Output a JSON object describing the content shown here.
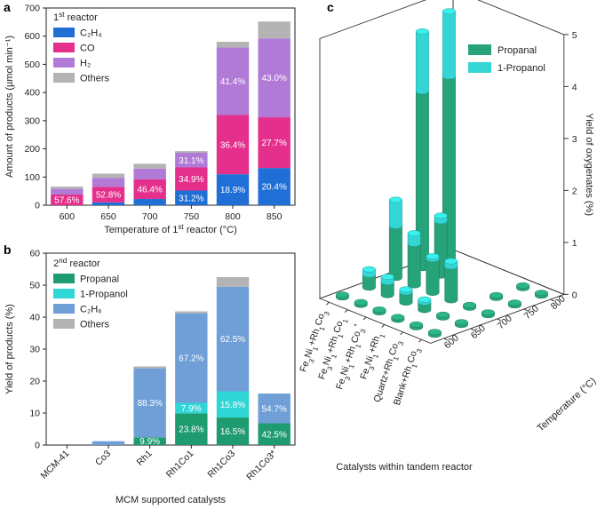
{
  "panel_labels": [
    "a",
    "b",
    "c"
  ],
  "colors": {
    "C2H4": "#1f6fd6",
    "CO": "#e52f8d",
    "H2": "#b07ad6",
    "Others": "#b3b3b3",
    "Propanal": "#1f9b70",
    "1-Propanol": "#2fd6d6",
    "C2H6": "#6f9fd6",
    "c_propanal": "#27a37a",
    "c_propanol": "#33d6d4"
  },
  "chart_data": [
    {
      "id": "a",
      "type": "bar",
      "stacked": true,
      "legend_title": "1st reactor",
      "legend_title_parts": [
        "1",
        "st",
        " reactor"
      ],
      "xlabel_parts": [
        "Temperature of 1",
        "st",
        " reactor (°C)"
      ],
      "xlabel": "Temperature of 1st reactor (°C)",
      "ylabel": "Amount of products (µmol min⁻¹)",
      "ylim": [
        0,
        700
      ],
      "yticks": [
        0,
        100,
        200,
        300,
        400,
        500,
        600,
        700
      ],
      "categories": [
        "600",
        "650",
        "700",
        "750",
        "800",
        "850"
      ],
      "series": [
        {
          "name": "C2H4",
          "label": "C₂H₄",
          "values": [
            0,
            10,
            22,
            52,
            110,
            132
          ]
        },
        {
          "name": "CO",
          "label": "CO",
          "values": [
            38,
            55,
            70,
            82,
            210,
            180
          ]
        },
        {
          "name": "H2",
          "label": "H₂",
          "values": [
            20,
            32,
            38,
            52,
            240,
            280
          ]
        },
        {
          "name": "Others",
          "label": "Others",
          "values": [
            8,
            15,
            17,
            6,
            20,
            60
          ]
        }
      ],
      "annotations": [
        {
          "cat": 0,
          "series": "CO",
          "text": "57.6%"
        },
        {
          "cat": 1,
          "series": "CO",
          "text": "52.8%"
        },
        {
          "cat": 2,
          "series": "CO",
          "text": "46.4%"
        },
        {
          "cat": 3,
          "series": "H2",
          "text": "31.1%"
        },
        {
          "cat": 3,
          "series": "CO",
          "text": "34.9%"
        },
        {
          "cat": 3,
          "series": "C2H4",
          "text": "31.2%"
        },
        {
          "cat": 4,
          "series": "H2",
          "text": "41.4%"
        },
        {
          "cat": 4,
          "series": "CO",
          "text": "36.4%"
        },
        {
          "cat": 4,
          "series": "C2H4",
          "text": "18.9%"
        },
        {
          "cat": 5,
          "series": "H2",
          "text": "43.0%"
        },
        {
          "cat": 5,
          "series": "CO",
          "text": "27.7%"
        },
        {
          "cat": 5,
          "series": "C2H4",
          "text": "20.4%"
        }
      ]
    },
    {
      "id": "b",
      "type": "bar",
      "stacked": true,
      "legend_title": "2nd reactor",
      "legend_title_parts": [
        "2",
        "nd",
        " reactor"
      ],
      "xlabel": "MCM supported catalysts",
      "ylabel": "Yield of products (%)",
      "ylim": [
        0,
        60
      ],
      "yticks": [
        0,
        10,
        20,
        30,
        40,
        50,
        60
      ],
      "categories": [
        "MCM-41",
        "Co3",
        "Rh1",
        "Rh1Co1",
        "Rh1Co3",
        "Rh1Co3*"
      ],
      "series": [
        {
          "name": "Propanal",
          "label": "Propanal",
          "values": [
            0,
            0,
            2.4,
            9.9,
            8.6,
            6.8
          ]
        },
        {
          "name": "1-Propanol",
          "label": "1-Propanol",
          "values": [
            0,
            0,
            0,
            3.3,
            8.2,
            0
          ]
        },
        {
          "name": "C2H6",
          "label": "C₂H₆",
          "values": [
            0,
            1.2,
            21.6,
            28.0,
            32.7,
            9.3
          ]
        },
        {
          "name": "Others",
          "label": "Others",
          "values": [
            0,
            0,
            0.6,
            0.6,
            3.0,
            0
          ]
        }
      ],
      "annotations": [
        {
          "cat": 2,
          "series": "C2H6",
          "text": "88.3%"
        },
        {
          "cat": 2,
          "series": "Propanal",
          "text": "9.9%"
        },
        {
          "cat": 3,
          "series": "C2H6",
          "text": "67.2%"
        },
        {
          "cat": 3,
          "series": "1-Propanol",
          "text": "7.9%"
        },
        {
          "cat": 3,
          "series": "Propanal",
          "text": "23.8%"
        },
        {
          "cat": 4,
          "series": "C2H6",
          "text": "62.5%"
        },
        {
          "cat": 4,
          "series": "1-Propanol",
          "text": "15.8%"
        },
        {
          "cat": 4,
          "series": "Propanal",
          "text": "16.5%"
        },
        {
          "cat": 5,
          "series": "C2H6",
          "text": "54.7%"
        },
        {
          "cat": 5,
          "series": "Propanal",
          "text": "42.5%"
        }
      ]
    },
    {
      "id": "c",
      "type": "bar3d",
      "zlabel": "Yield of oxygenates (%)",
      "zlim": [
        0,
        5
      ],
      "zticks": [
        0,
        1,
        2,
        3,
        4,
        5
      ],
      "x_title": "Catalysts within tandem reactor",
      "y_title": "Temperature (°C)",
      "temperatures": [
        "600",
        "650",
        "700",
        "750",
        "800"
      ],
      "catalysts": [
        {
          "label": "Fe3Ni1+Rh1Co3",
          "parts": [
            [
              "Fe",
              ""
            ],
            [
              "3",
              "sub"
            ],
            [
              "Ni",
              ""
            ],
            [
              "1",
              "sub"
            ],
            [
              "+Rh",
              ""
            ],
            [
              "1",
              "sub"
            ],
            [
              "Co",
              ""
            ],
            [
              "3",
              "sub"
            ]
          ]
        },
        {
          "label": "Fe3Ni1+Rh1Co1",
          "parts": [
            [
              "Fe",
              ""
            ],
            [
              "3",
              "sub"
            ],
            [
              "Ni",
              ""
            ],
            [
              "1",
              "sub"
            ],
            [
              "+Rh",
              ""
            ],
            [
              "1",
              "sub"
            ],
            [
              "Co",
              ""
            ],
            [
              "1",
              "sub"
            ]
          ]
        },
        {
          "label": "Fe3Ni1+Rh1Co3*",
          "parts": [
            [
              "Fe",
              ""
            ],
            [
              "3",
              "sub"
            ],
            [
              "Ni",
              ""
            ],
            [
              "1",
              "sub"
            ],
            [
              "+Rh",
              ""
            ],
            [
              "1",
              "sub"
            ],
            [
              "Co",
              ""
            ],
            [
              "3",
              "sub"
            ],
            [
              "*",
              "sup"
            ]
          ]
        },
        {
          "label": "Fe3Ni1+Rh1",
          "parts": [
            [
              "Fe",
              ""
            ],
            [
              "3",
              "sub"
            ],
            [
              "Ni",
              ""
            ],
            [
              "1",
              "sub"
            ],
            [
              "+Rh",
              ""
            ],
            [
              "1",
              "sub"
            ]
          ]
        },
        {
          "label": "Quartz+Rh1Co3",
          "parts": [
            [
              "Quartz+Rh",
              ""
            ],
            [
              "1",
              "sub"
            ],
            [
              "Co",
              ""
            ],
            [
              "3",
              "sub"
            ]
          ]
        },
        {
          "label": "Blank+Rh1Co3",
          "parts": [
            [
              "Blank+Rh",
              ""
            ],
            [
              "1",
              "sub"
            ],
            [
              "Co",
              ""
            ],
            [
              "3",
              "sub"
            ]
          ]
        }
      ],
      "series": [
        {
          "name": "Propanal",
          "label": "Propanal",
          "values": [
            [
              0.05,
              0.25,
              1.0,
              3.4,
              3.5
            ],
            [
              0.05,
              0.25,
              0.8,
              1.05,
              0.0
            ],
            [
              0.05,
              0.2,
              0.65,
              0.0,
              0.0
            ],
            [
              0.05,
              0.15,
              0.65,
              0.0,
              0.0
            ],
            [
              0.05,
              0.05,
              0.05,
              0.05,
              0.05
            ],
            [
              0.05,
              0.05,
              0.05,
              0.05,
              0.05
            ]
          ]
        },
        {
          "name": "1-Propanol",
          "label": "1-Propanol",
          "values": [
            [
              0.0,
              0.1,
              0.5,
              1.15,
              1.25
            ],
            [
              0.0,
              0.1,
              0.2,
              0.1,
              0.0
            ],
            [
              0.0,
              0.05,
              0.05,
              0.0,
              0.0
            ],
            [
              0.0,
              0.05,
              0.1,
              0.0,
              0.0
            ],
            [
              0.0,
              0.0,
              0.0,
              0.0,
              0.0
            ],
            [
              0.0,
              0.0,
              0.0,
              0.0,
              0.0
            ]
          ]
        }
      ]
    }
  ]
}
